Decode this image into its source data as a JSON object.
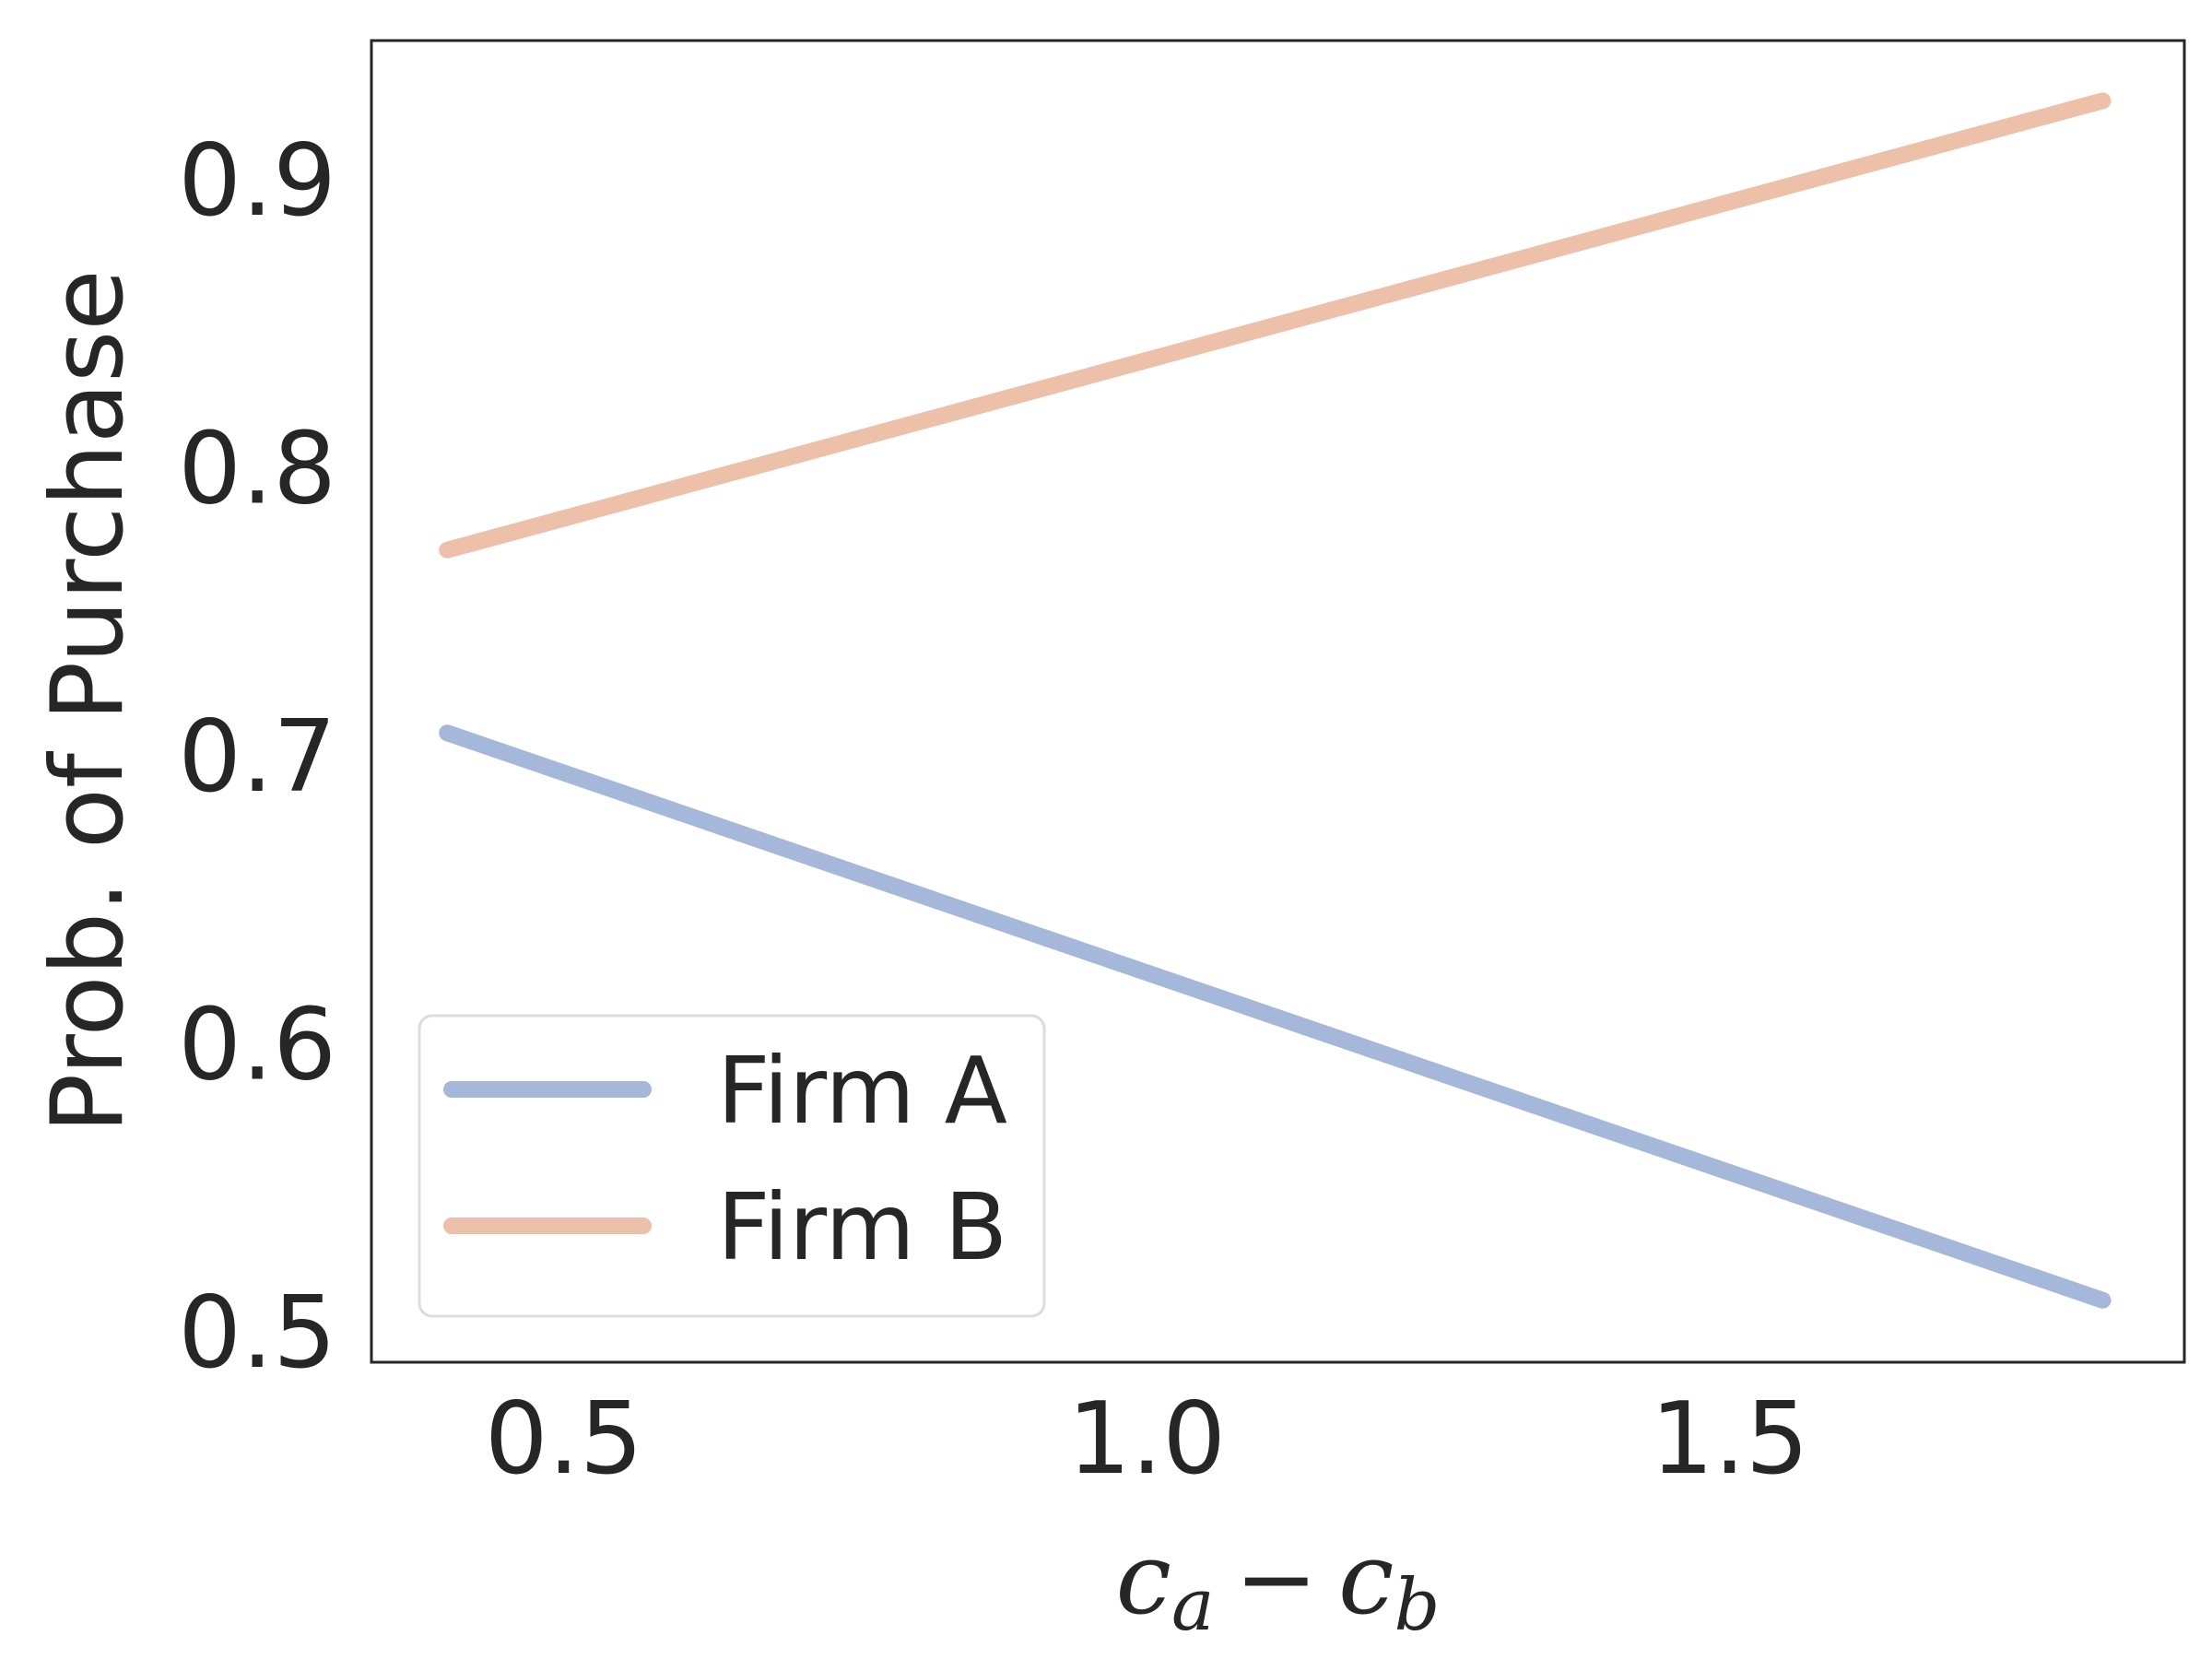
{
  "chart_data": {
    "type": "line",
    "xlabel": "c_a − c_b",
    "xlabel_parts": {
      "c1": "c",
      "s1": "a",
      "op": "−",
      "c2": "c",
      "s2": "b"
    },
    "ylabel": "Prob. of Purchase",
    "xlim": [
      0.335,
      1.89
    ],
    "ylim": [
      0.4895,
      0.9484
    ],
    "x_ticks": [
      0.5,
      1.0,
      1.5
    ],
    "x_tick_labels": [
      "0.5",
      "1.0",
      "1.5"
    ],
    "y_ticks": [
      0.5,
      0.6,
      0.7,
      0.8,
      0.9
    ],
    "y_tick_labels": [
      "0.5",
      "0.6",
      "0.7",
      "0.8",
      "0.9"
    ],
    "grid": false,
    "legend_position": "lower-left",
    "series": [
      {
        "name": "Firm A",
        "color": "#a5b8d9",
        "x": [
          0.4,
          1.82
        ],
        "y": [
          0.708,
          0.511
        ]
      },
      {
        "name": "Firm B",
        "color": "#edc1a9",
        "x": [
          0.4,
          1.82
        ],
        "y": [
          0.7715,
          0.9275
        ]
      }
    ]
  }
}
